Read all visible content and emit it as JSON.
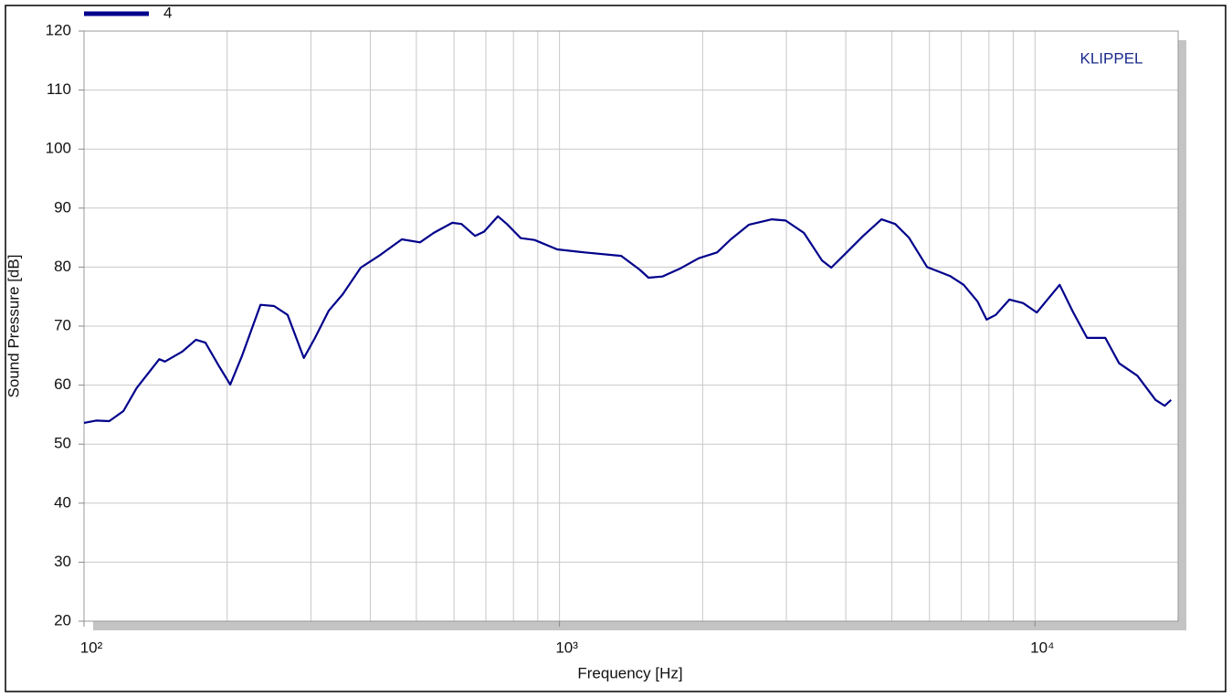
{
  "chart_data": {
    "type": "line",
    "xlabel": "Frequency  [Hz]",
    "ylabel": "Sound Pressure  [dB]",
    "annotation": "KLIPPEL",
    "log_x": true,
    "grid": true,
    "minor_grid": true,
    "legend": "top-left",
    "xlim": [
      100,
      20000
    ],
    "ylim": [
      20,
      120
    ],
    "xticks": [
      {
        "value": 100,
        "label": "10²"
      },
      {
        "value": 1000,
        "label": "10³"
      },
      {
        "value": 10000,
        "label": "10⁴"
      }
    ],
    "yticks": [
      20,
      30,
      40,
      50,
      60,
      70,
      80,
      90,
      100,
      110,
      120
    ],
    "x": [
      100,
      106,
      113,
      121,
      129,
      144,
      148,
      161,
      172,
      180,
      192,
      203,
      215,
      235,
      251,
      268,
      290,
      306,
      327,
      350,
      382,
      417,
      466,
      509,
      544,
      595,
      622,
      664,
      694,
      742,
      775,
      829,
      886,
      989,
      1129,
      1348,
      1473,
      1539,
      1645,
      1797,
      1963,
      2145,
      2292,
      2504,
      2797,
      2989,
      3265,
      3568,
      3729,
      3985,
      4353,
      4756,
      5082,
      5431,
      5933,
      6627,
      7081,
      7568,
      7911,
      8270,
      8837,
      9441,
      10088,
      10547,
      11270,
      12040,
      12870,
      14060,
      15030,
      16420,
      17930,
      18740,
      19330
    ],
    "series": [
      {
        "name": "4",
        "color": "#00008b",
        "values": [
          53.6,
          54,
          53.9,
          55.6,
          59.5,
          64.4,
          64,
          65.7,
          67.7,
          67.2,
          63.3,
          60.1,
          65,
          73.6,
          73.4,
          71.9,
          64.6,
          68,
          72.6,
          75.4,
          79.9,
          81.9,
          84.7,
          84.2,
          85.8,
          87.5,
          87.3,
          85.3,
          86,
          88.6,
          87.3,
          84.9,
          84.6,
          83,
          82.5,
          81.9,
          79.6,
          78.2,
          78.4,
          79.8,
          81.5,
          82.5,
          84.7,
          87.2,
          88.1,
          87.9,
          85.8,
          81.1,
          79.9,
          82.2,
          85.3,
          88.1,
          87.3,
          85,
          80,
          78.5,
          77,
          74.2,
          71.1,
          71.9,
          74.5,
          73.9,
          72.3,
          74.2,
          77,
          72.3,
          68,
          68,
          63.7,
          61.6,
          57.5,
          56.5,
          57.5
        ]
      }
    ]
  }
}
